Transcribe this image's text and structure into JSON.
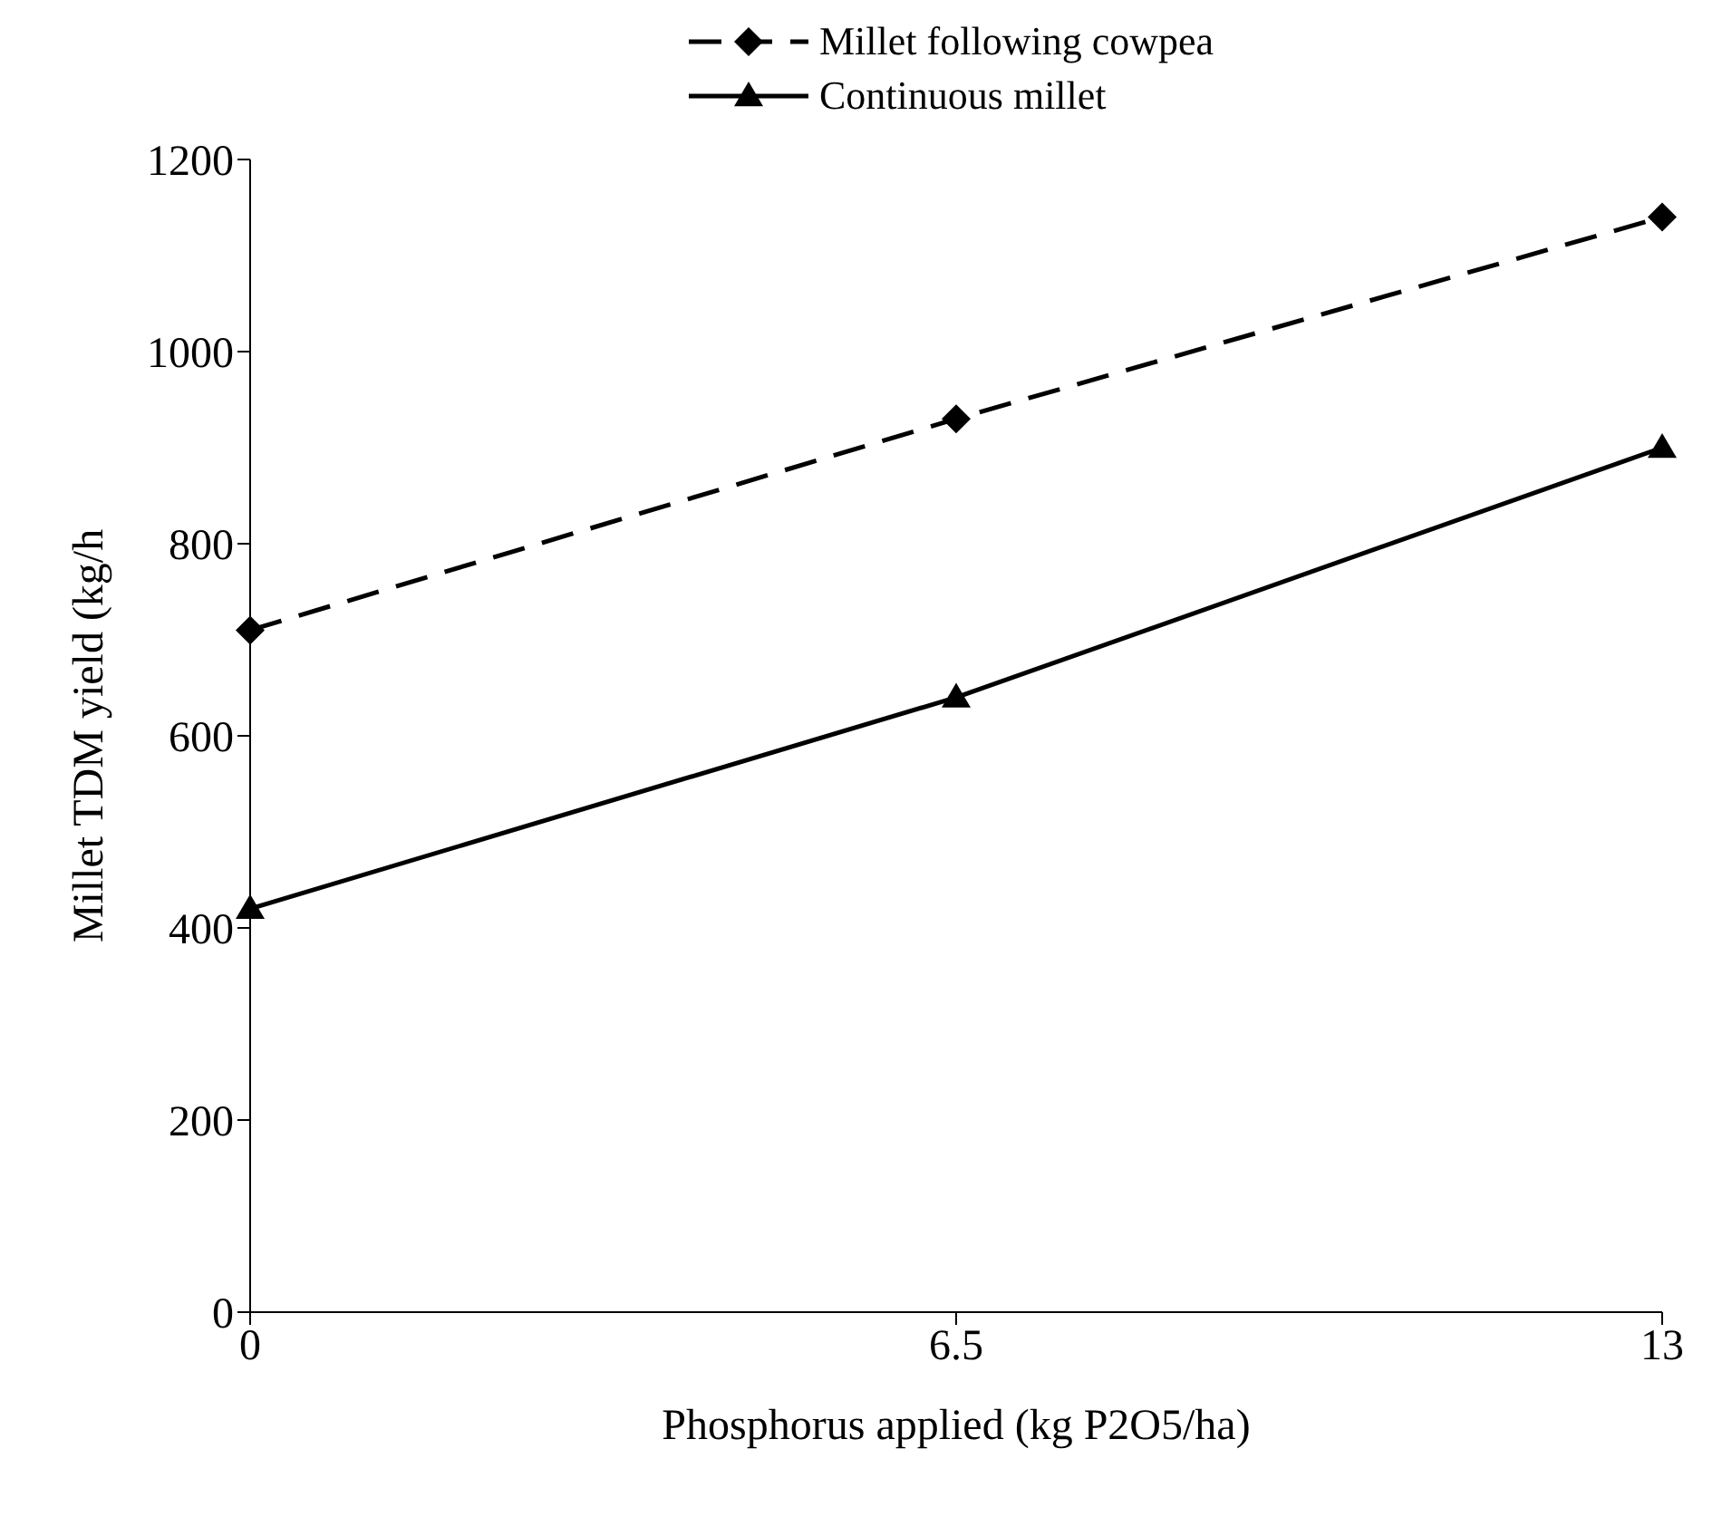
{
  "chart_data": {
    "type": "line",
    "xlabel": "Phosphorus applied (kg P2O5/ha)",
    "ylabel": "Millet TDM yield (kg/h",
    "x": [
      0,
      6.5,
      13
    ],
    "xlim": [
      0,
      13
    ],
    "xticks": [
      0,
      6.5,
      13
    ],
    "ylim": [
      0,
      1200
    ],
    "yticks": [
      0,
      200,
      400,
      600,
      800,
      1000,
      1200
    ],
    "grid": false,
    "legend": "top",
    "series": [
      {
        "name": "Millet following cowpea",
        "color": "#000000",
        "values": [
          710,
          930,
          1140
        ],
        "marker": "diamond",
        "line_style": "dashed"
      },
      {
        "name": "Continuous millet",
        "color": "#000000",
        "values": [
          420,
          640,
          900
        ],
        "marker": "triangle",
        "line_style": "solid"
      }
    ]
  }
}
